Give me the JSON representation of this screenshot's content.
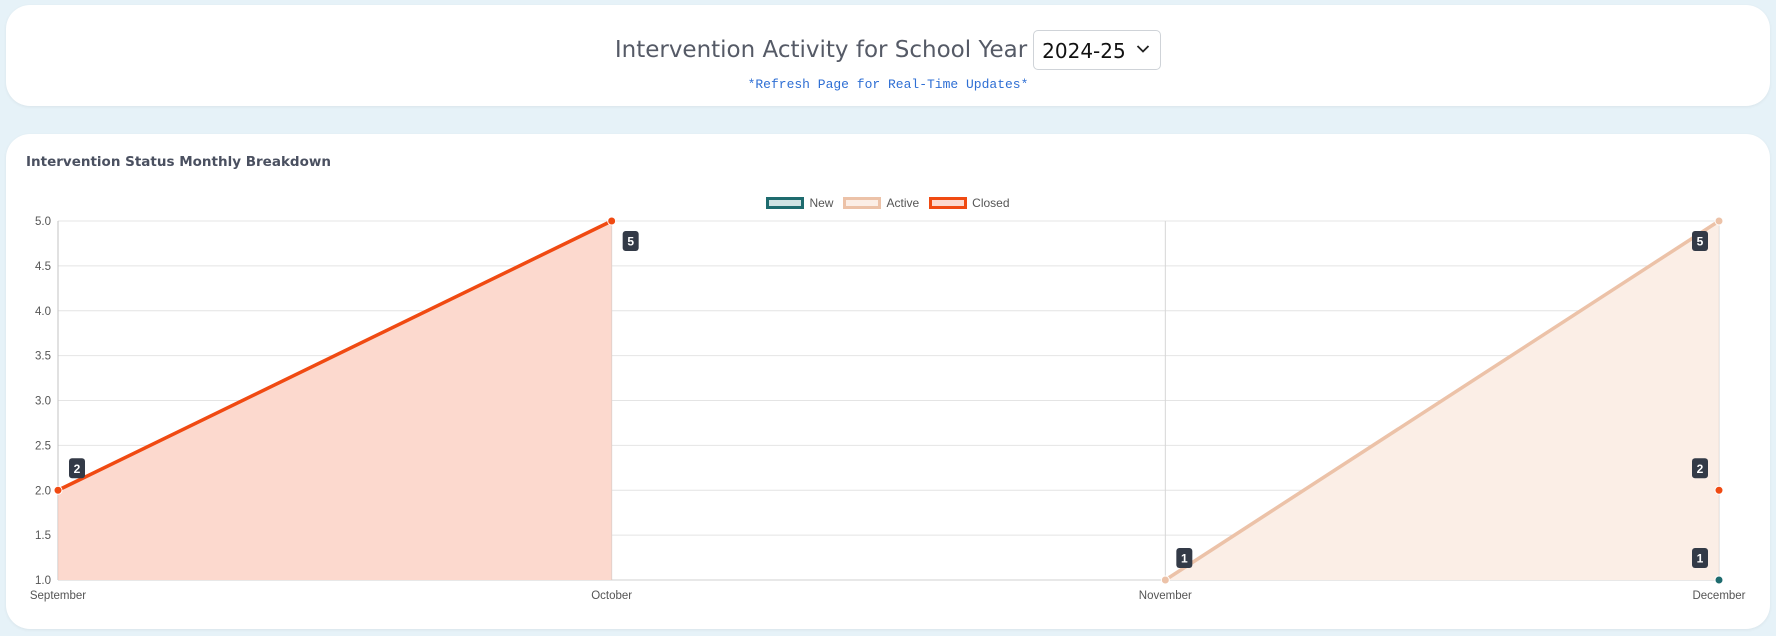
{
  "header": {
    "title": "Intervention Activity for School Year",
    "year_select": {
      "value": "2024-25"
    },
    "refresh_note": "*Refresh Page for Real-Time Updates*"
  },
  "chart_data": {
    "type": "line",
    "title": "Intervention Status Monthly Breakdown",
    "categories": [
      "September",
      "October",
      "November",
      "December"
    ],
    "ylim": [
      1.0,
      5.0
    ],
    "yticks": [
      "1.0",
      "1.5",
      "2.0",
      "2.5",
      "3.0",
      "3.5",
      "4.0",
      "4.5",
      "5.0"
    ],
    "grid": true,
    "legend_position": "top-center",
    "series": [
      {
        "name": "New",
        "color": "#1e6b6e",
        "fill": "#cfe2e3",
        "filled": false,
        "values": [
          null,
          null,
          null,
          1
        ]
      },
      {
        "name": "Active",
        "color": "#ecc2a8",
        "fill": "#fbeee6",
        "filled": true,
        "values": [
          null,
          null,
          1,
          5
        ]
      },
      {
        "name": "Closed",
        "color": "#f04a12",
        "fill": "#fcd9ce",
        "filled": true,
        "values": [
          2,
          5,
          null,
          2
        ]
      }
    ],
    "data_labels": true
  }
}
